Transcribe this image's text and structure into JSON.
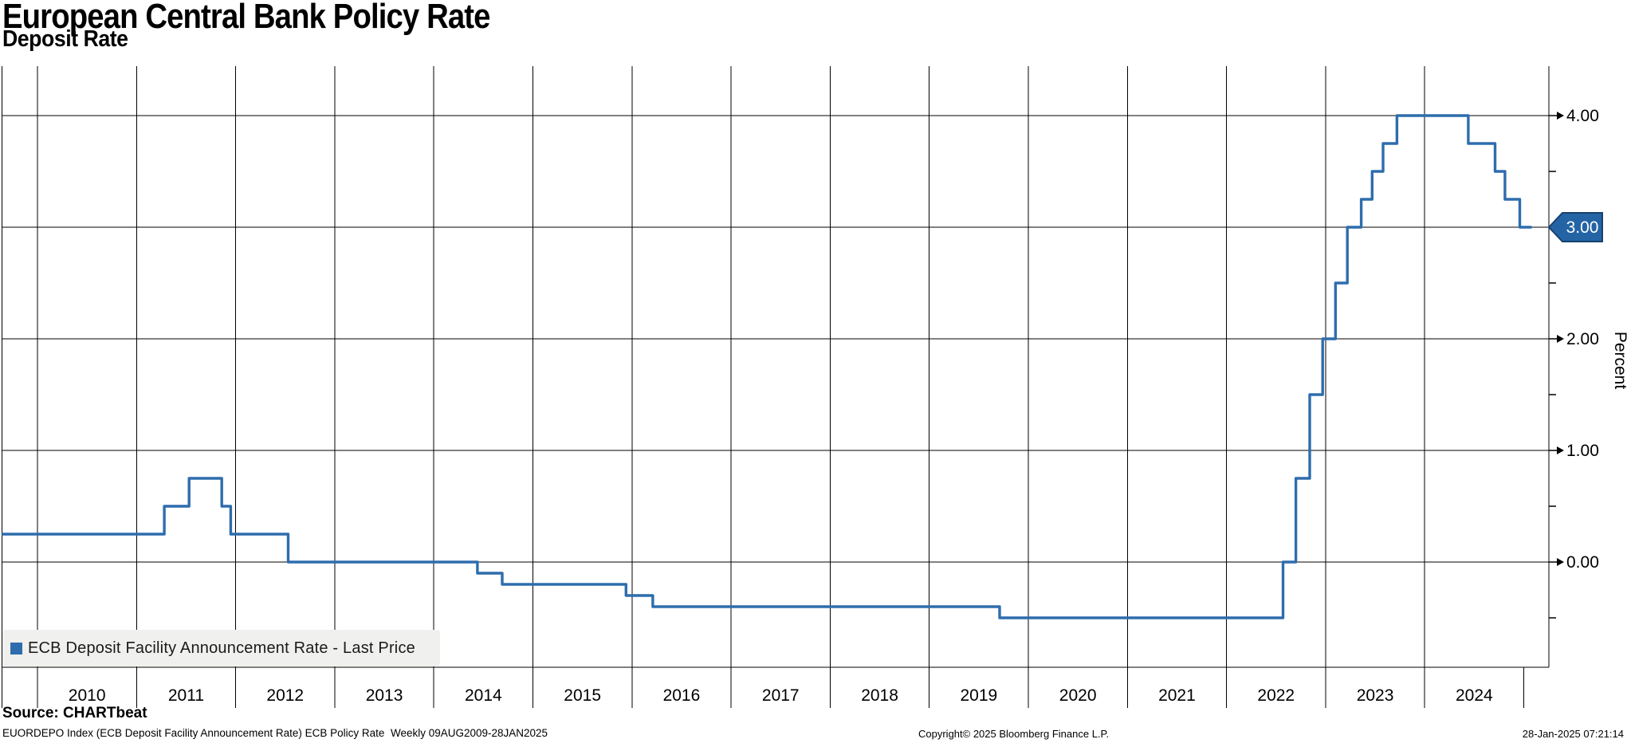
{
  "header": {
    "title": "European Central Bank Policy Rate",
    "subtitle": "Deposit Rate"
  },
  "legend": {
    "label": "ECB Deposit Facility Announcement Rate - Last Price"
  },
  "y_axis": {
    "title": "Percent",
    "major_ticks": [
      {
        "value": 4,
        "label": "4.00"
      },
      {
        "value": 2,
        "label": "2.00"
      },
      {
        "value": 1,
        "label": "1.00"
      },
      {
        "value": 0,
        "label": "0.00"
      }
    ],
    "minor_tick_values": [
      3.5,
      2.5,
      1.5,
      0.5,
      -0.5
    ],
    "last_price_badge": {
      "value": "3.00"
    }
  },
  "x_axis": {
    "year_labels": [
      "2010",
      "2011",
      "2012",
      "2013",
      "2014",
      "2015",
      "2016",
      "2017",
      "2018",
      "2019",
      "2020",
      "2021",
      "2022",
      "2023",
      "2024"
    ]
  },
  "footer": {
    "source": "Source: CHARTbeat",
    "description": "EUORDEPO Index (ECB Deposit Facility Announcement Rate) ECB Policy Rate  Weekly 09AUG2009-28JAN2025",
    "copyright": "Copyright© 2025 Bloomberg Finance L.P.",
    "timestamp": "28-Jan-2025 07:21:14"
  },
  "colors": {
    "line": "#2e6dad",
    "legend_swatch": "#2e6dad",
    "badge_fill": "#2464a5",
    "badge_border": "#16406e",
    "badge_text": "#ffffff",
    "grid": "#000000",
    "axis_text": "#000000",
    "legend_bg": "#f0f0ee"
  },
  "chart_data": {
    "type": "line",
    "step": true,
    "title": "European Central Bank Policy Rate",
    "subtitle": "Deposit Rate",
    "ylabel": "Percent",
    "x_range": [
      2009.64,
      2025.25
    ],
    "ylim": [
      -0.94,
      4.44
    ],
    "y_gridlines": [
      0,
      1,
      2,
      3,
      4
    ],
    "x_gridlines_years": [
      2010,
      2011,
      2012,
      2013,
      2014,
      2015,
      2016,
      2017,
      2018,
      2019,
      2020,
      2021,
      2022,
      2023,
      2024
    ],
    "partial_end_tick_year": 2025,
    "grid": true,
    "legend_position": "bottom-left",
    "series": [
      {
        "name": "ECB Deposit Facility Announcement Rate - Last Price",
        "color": "#2e6dad",
        "initial_point": [
          2009.64,
          0.25
        ],
        "rate_changes": [
          [
            2011.28,
            0.5
          ],
          [
            2011.53,
            0.75
          ],
          [
            2011.86,
            0.5
          ],
          [
            2011.95,
            0.25
          ],
          [
            2012.53,
            0.0
          ],
          [
            2014.44,
            -0.1
          ],
          [
            2014.69,
            -0.2
          ],
          [
            2015.94,
            -0.3
          ],
          [
            2016.21,
            -0.4
          ],
          [
            2019.71,
            -0.5
          ],
          [
            2022.57,
            0.0
          ],
          [
            2022.7,
            0.75
          ],
          [
            2022.84,
            1.5
          ],
          [
            2022.97,
            2.0
          ],
          [
            2023.1,
            2.5
          ],
          [
            2023.22,
            3.0
          ],
          [
            2023.36,
            3.25
          ],
          [
            2023.47,
            3.5
          ],
          [
            2023.58,
            3.75
          ],
          [
            2023.72,
            4.0
          ],
          [
            2024.44,
            3.75
          ],
          [
            2024.71,
            3.5
          ],
          [
            2024.81,
            3.25
          ],
          [
            2024.96,
            3.0
          ]
        ],
        "end_point": [
          2025.08,
          3.0
        ],
        "last_value": 3.0
      }
    ]
  }
}
